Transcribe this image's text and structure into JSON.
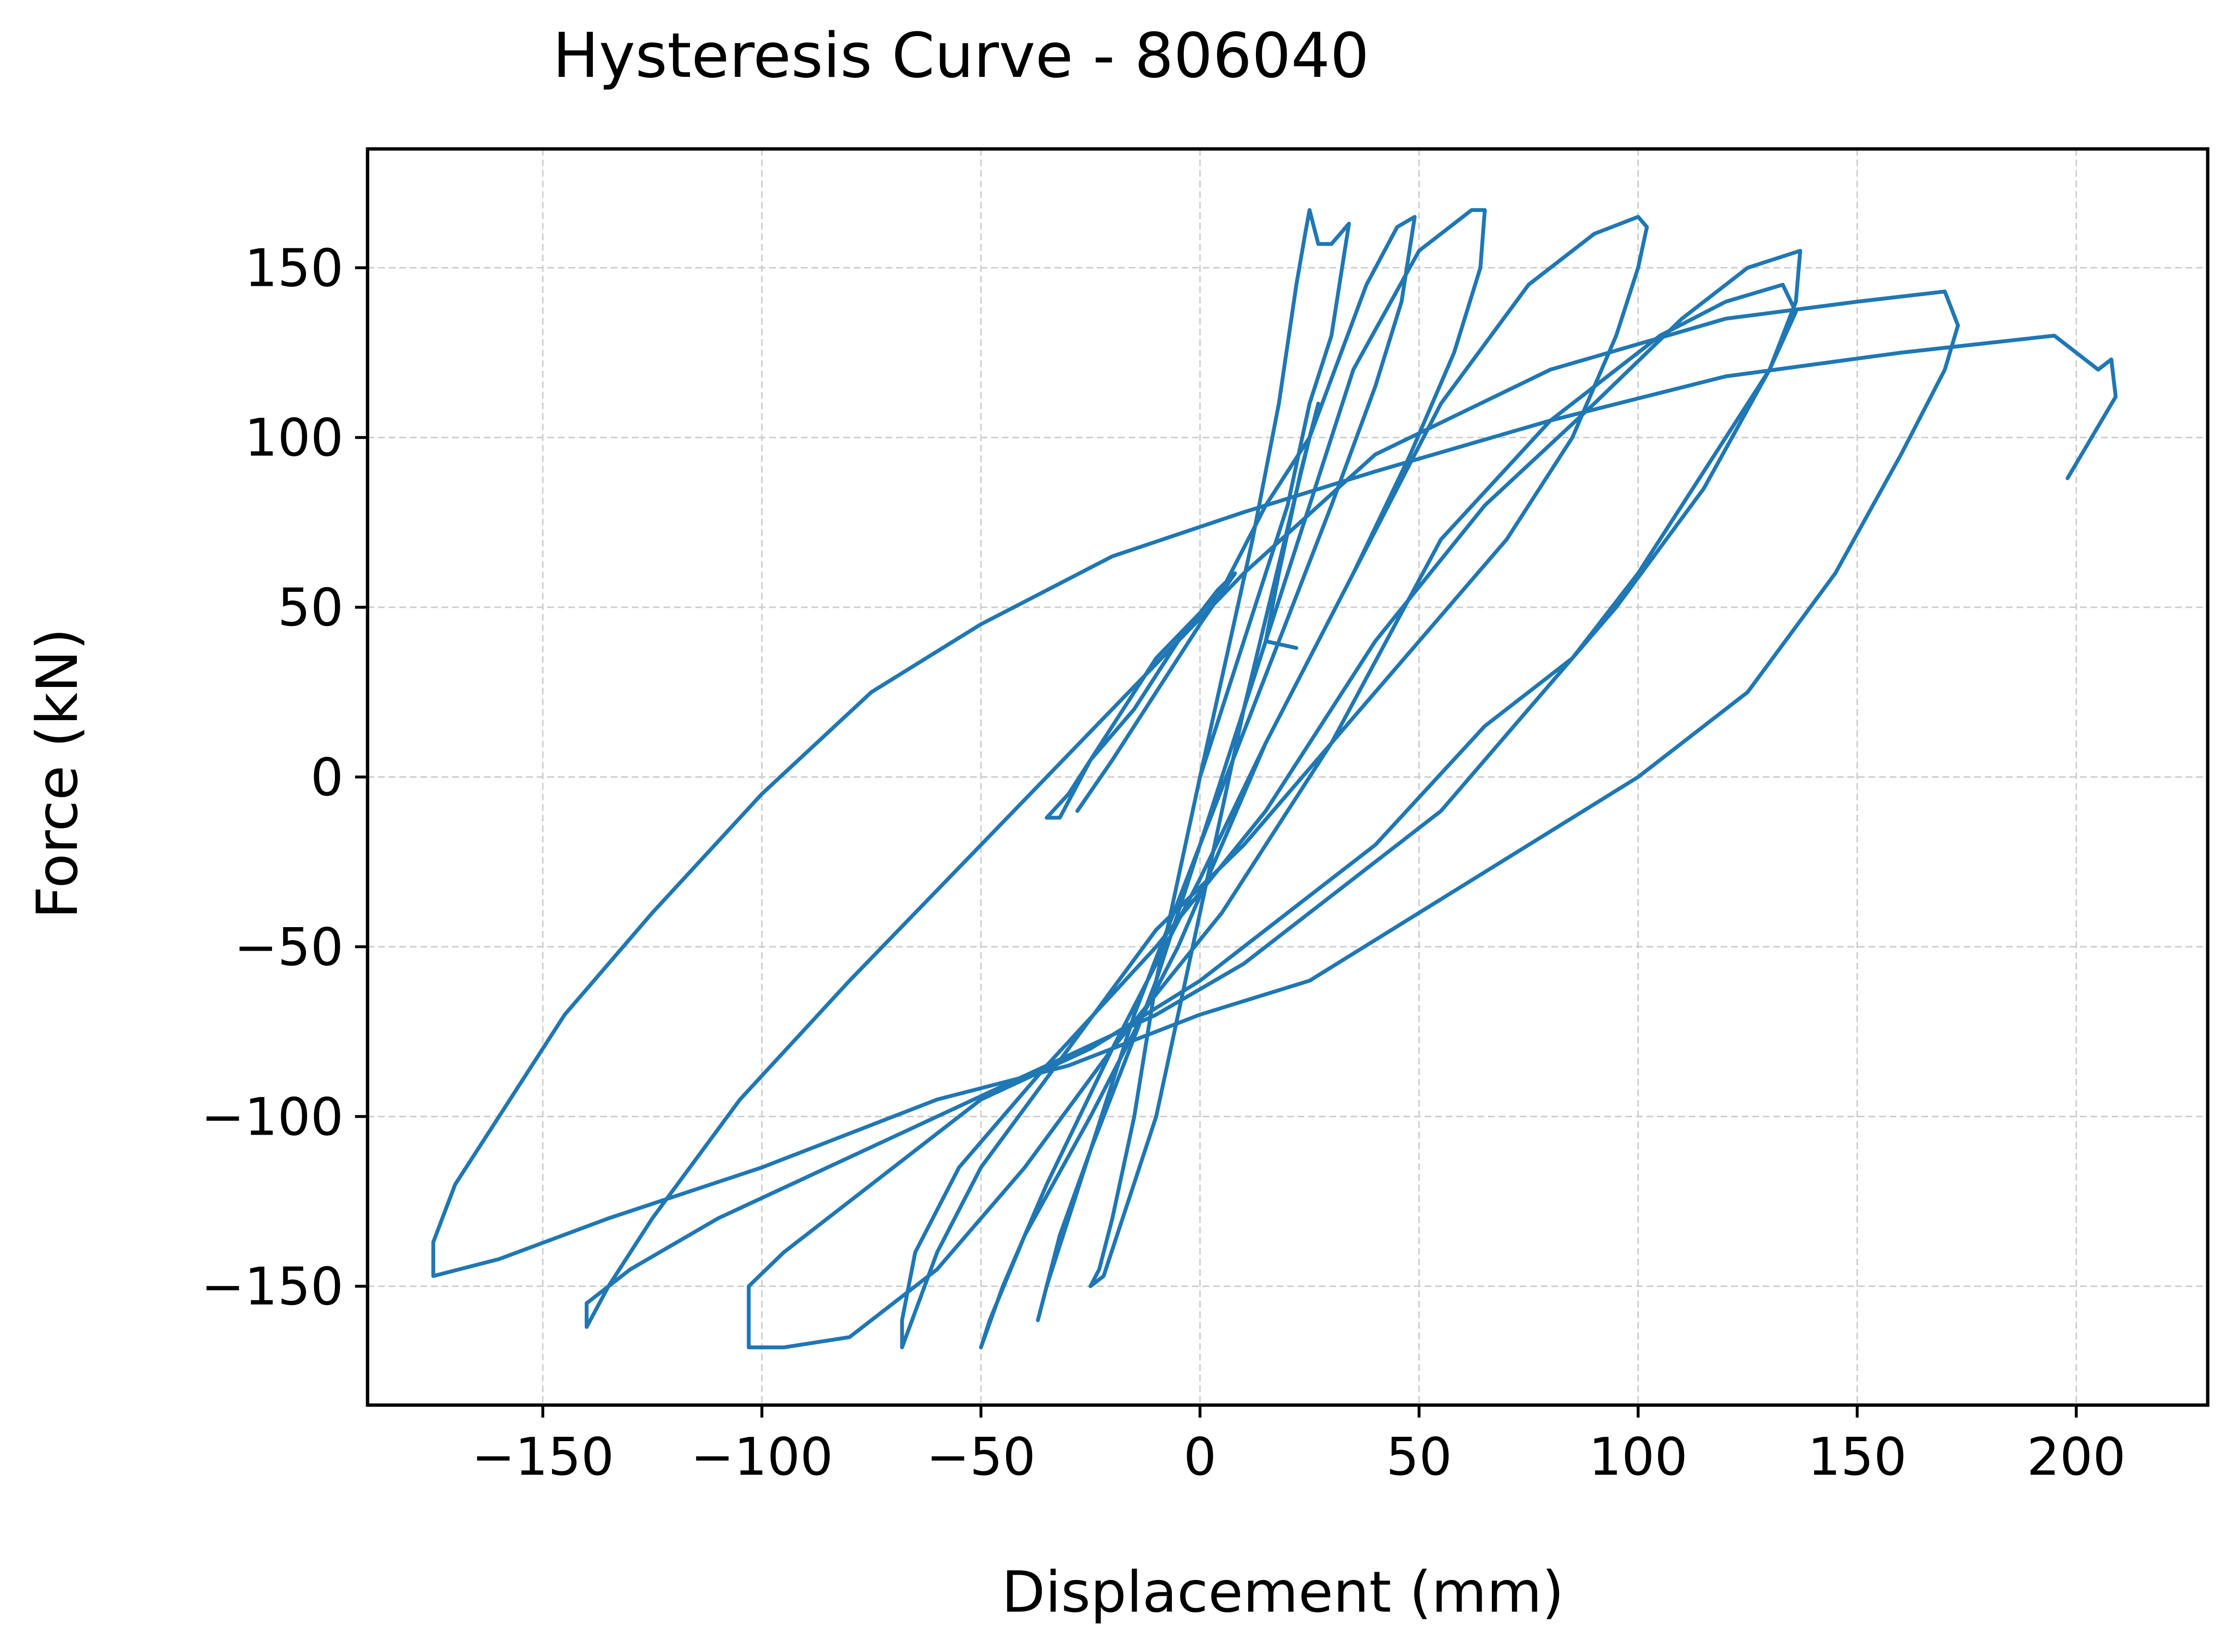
{
  "chart_data": {
    "type": "line",
    "title": "Hysteresis Curve - 806040",
    "xlabel": "Displacement (mm)",
    "ylabel": "Force (kN)",
    "xlim": [
      -190,
      230
    ],
    "ylim": [
      -185,
      185
    ],
    "xticks": [
      -150,
      -100,
      -50,
      0,
      50,
      100,
      150,
      200
    ],
    "xtick_labels": [
      "−150",
      "−100",
      "−50",
      "0",
      "50",
      "100",
      "150",
      "200"
    ],
    "yticks": [
      -150,
      -100,
      -50,
      0,
      50,
      100,
      150
    ],
    "ytick_labels": [
      "−150",
      "−100",
      "−50",
      "0",
      "50",
      "100",
      "150"
    ],
    "grid": true,
    "legend": "none",
    "line_color": "#1f77b4",
    "series": [
      {
        "values": [
          [
            0,
            0
          ],
          [
            6,
            35
          ],
          [
            12,
            70
          ],
          [
            18,
            110
          ],
          [
            22,
            145
          ],
          [
            24,
            160
          ],
          [
            25,
            167
          ],
          [
            26,
            162
          ],
          [
            27,
            157
          ],
          [
            30,
            157
          ],
          [
            34,
            163
          ],
          [
            30,
            130
          ],
          [
            25,
            110
          ],
          [
            20,
            80
          ],
          [
            10,
            40
          ],
          [
            0,
            0
          ],
          [
            -10,
            -60
          ],
          [
            -15,
            -100
          ],
          [
            -20,
            -130
          ],
          [
            -23,
            -145
          ],
          [
            -25,
            -150
          ],
          [
            -22,
            -147
          ],
          [
            -10,
            -100
          ],
          [
            0,
            -40
          ],
          [
            10,
            20
          ],
          [
            25,
            100
          ],
          [
            38,
            145
          ],
          [
            45,
            162
          ],
          [
            49,
            165
          ],
          [
            46,
            140
          ],
          [
            40,
            115
          ],
          [
            30,
            80
          ],
          [
            15,
            30
          ],
          [
            0,
            -20
          ],
          [
            -15,
            -70
          ],
          [
            -25,
            -110
          ],
          [
            -32,
            -135
          ],
          [
            -37,
            -160
          ],
          [
            -35,
            -150
          ],
          [
            -25,
            -110
          ],
          [
            -10,
            -60
          ],
          [
            5,
            0
          ],
          [
            20,
            60
          ],
          [
            35,
            120
          ],
          [
            50,
            155
          ],
          [
            62,
            167
          ],
          [
            65,
            167
          ],
          [
            64,
            150
          ],
          [
            58,
            125
          ],
          [
            48,
            95
          ],
          [
            35,
            60
          ],
          [
            15,
            10
          ],
          [
            0,
            -30
          ],
          [
            -20,
            -80
          ],
          [
            -35,
            -120
          ],
          [
            -45,
            -150
          ],
          [
            -50,
            -168
          ],
          [
            -48,
            -160
          ],
          [
            -40,
            -135
          ],
          [
            -25,
            -100
          ],
          [
            -5,
            -50
          ],
          [
            15,
            10
          ],
          [
            35,
            60
          ],
          [
            55,
            110
          ],
          [
            75,
            145
          ],
          [
            90,
            160
          ],
          [
            100,
            165
          ],
          [
            102,
            162
          ],
          [
            100,
            150
          ],
          [
            95,
            130
          ],
          [
            85,
            100
          ],
          [
            70,
            70
          ],
          [
            50,
            40
          ],
          [
            30,
            10
          ],
          [
            10,
            -20
          ],
          [
            -10,
            -45
          ],
          [
            -30,
            -80
          ],
          [
            -50,
            -115
          ],
          [
            -60,
            -140
          ],
          [
            -68,
            -168
          ],
          [
            -68,
            -160
          ],
          [
            -65,
            -140
          ],
          [
            -55,
            -115
          ],
          [
            -35,
            -85
          ],
          [
            -10,
            -50
          ],
          [
            15,
            -10
          ],
          [
            40,
            40
          ],
          [
            65,
            80
          ],
          [
            90,
            110
          ],
          [
            110,
            135
          ],
          [
            125,
            150
          ],
          [
            137,
            155
          ],
          [
            136,
            140
          ],
          [
            130,
            120
          ],
          [
            120,
            100
          ],
          [
            100,
            60
          ],
          [
            85,
            35
          ],
          [
            65,
            15
          ],
          [
            40,
            -20
          ],
          [
            20,
            -40
          ],
          [
            0,
            -60
          ],
          [
            -25,
            -80
          ],
          [
            -50,
            -95
          ],
          [
            -75,
            -120
          ],
          [
            -95,
            -140
          ],
          [
            -103,
            -150
          ],
          [
            -103,
            -168
          ],
          [
            -95,
            -168
          ],
          [
            -80,
            -165
          ],
          [
            -60,
            -145
          ],
          [
            -40,
            -115
          ],
          [
            -20,
            -80
          ],
          [
            5,
            -40
          ],
          [
            30,
            10
          ],
          [
            55,
            70
          ],
          [
            80,
            105
          ],
          [
            105,
            130
          ],
          [
            120,
            140
          ],
          [
            133,
            145
          ],
          [
            136,
            137
          ],
          [
            130,
            120
          ],
          [
            115,
            85
          ],
          [
            95,
            50
          ],
          [
            75,
            20
          ],
          [
            55,
            -10
          ],
          [
            35,
            -30
          ],
          [
            10,
            -55
          ],
          [
            -10,
            -70
          ],
          [
            -35,
            -85
          ],
          [
            -60,
            -100
          ],
          [
            -85,
            -115
          ],
          [
            -110,
            -130
          ],
          [
            -130,
            -145
          ],
          [
            -140,
            -155
          ],
          [
            -140,
            -162
          ],
          [
            -135,
            -150
          ],
          [
            -125,
            -130
          ],
          [
            -105,
            -95
          ],
          [
            -80,
            -60
          ],
          [
            -50,
            -20
          ],
          [
            -20,
            20
          ],
          [
            10,
            60
          ],
          [
            40,
            95
          ],
          [
            80,
            120
          ],
          [
            120,
            135
          ],
          [
            150,
            140
          ],
          [
            170,
            143
          ],
          [
            173,
            133
          ],
          [
            170,
            120
          ],
          [
            160,
            95
          ],
          [
            145,
            60
          ],
          [
            125,
            25
          ],
          [
            100,
            0
          ],
          [
            75,
            -20
          ],
          [
            50,
            -40
          ],
          [
            25,
            -60
          ],
          [
            0,
            -70
          ],
          [
            -30,
            -85
          ],
          [
            -60,
            -95
          ],
          [
            -100,
            -115
          ],
          [
            -135,
            -130
          ],
          [
            -160,
            -142
          ],
          [
            -175,
            -147
          ],
          [
            -175,
            -137
          ],
          [
            -170,
            -120
          ],
          [
            -160,
            -100
          ],
          [
            -145,
            -70
          ],
          [
            -125,
            -40
          ],
          [
            -100,
            -5
          ],
          [
            -75,
            25
          ],
          [
            -50,
            45
          ],
          [
            -20,
            65
          ],
          [
            10,
            78
          ],
          [
            40,
            90
          ],
          [
            80,
            105
          ],
          [
            120,
            118
          ],
          [
            160,
            125
          ],
          [
            195,
            130
          ],
          [
            200,
            125
          ],
          [
            205,
            120
          ],
          [
            208,
            123
          ],
          [
            209,
            112
          ],
          [
            198,
            88
          ]
        ]
      },
      {
        "values": [
          [
            -28,
            -10
          ],
          [
            -20,
            5
          ],
          [
            -10,
            25
          ],
          [
            0,
            45
          ],
          [
            8,
            60
          ],
          [
            4,
            55
          ],
          [
            -5,
            40
          ],
          [
            -15,
            20
          ],
          [
            -25,
            5
          ],
          [
            -32,
            -12
          ],
          [
            -35,
            -12
          ],
          [
            -30,
            -5
          ],
          [
            -20,
            15
          ],
          [
            -10,
            35
          ],
          [
            5,
            55
          ],
          [
            15,
            80
          ],
          [
            25,
            100
          ],
          [
            27,
            110
          ],
          [
            23,
            90
          ],
          [
            18,
            60
          ],
          [
            15,
            40
          ],
          [
            22,
            38
          ]
        ]
      }
    ]
  }
}
